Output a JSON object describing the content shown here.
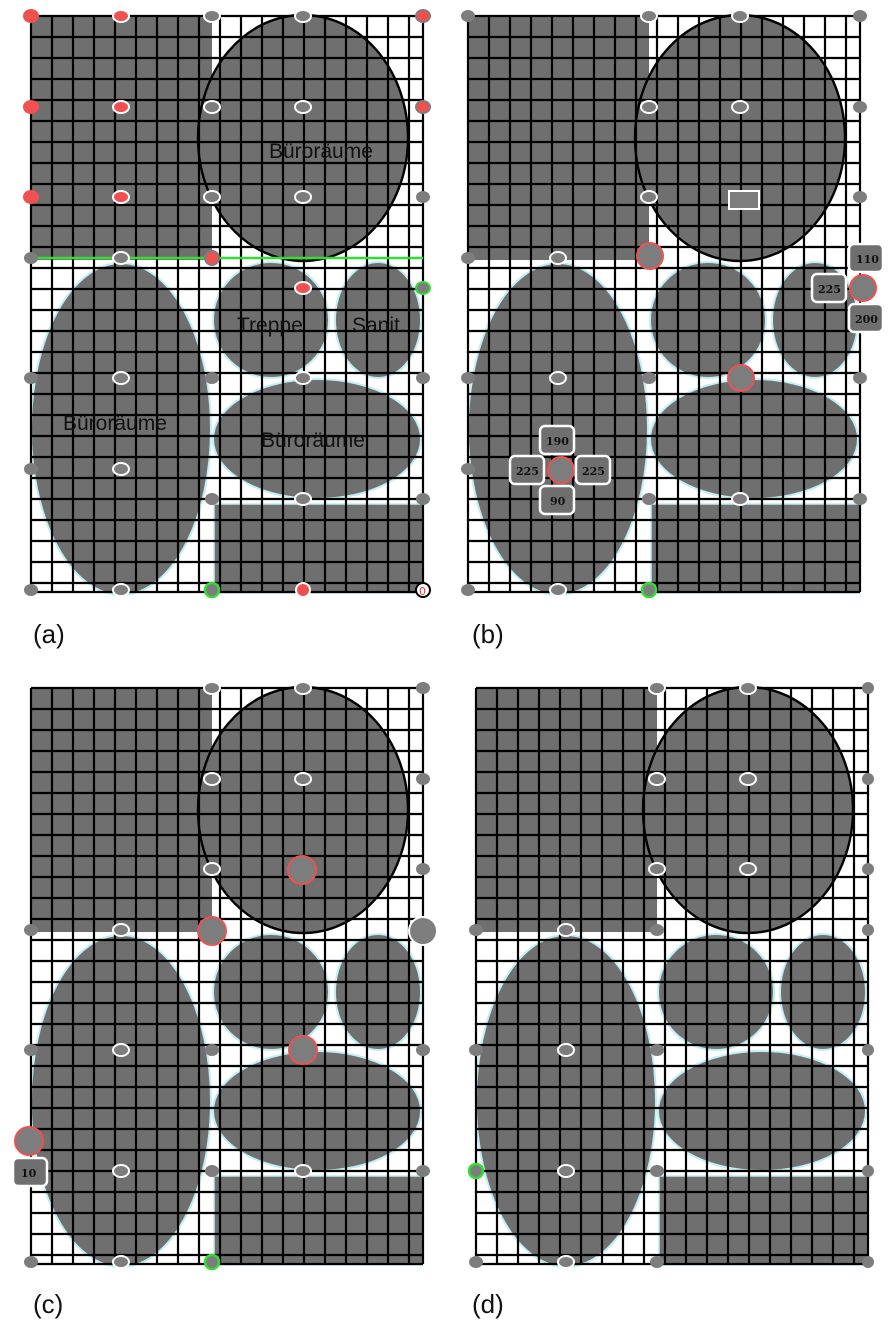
{
  "colors": {
    "room_fill": "#6f6f6f",
    "grid_line": "#000000",
    "node_gray": "#7d7d7d",
    "node_red": "#f05050",
    "node_green": "#33dd33",
    "highlight_green": "#33dd33",
    "badge_stroke": "#ffffff",
    "edge_glow": "#bfeef5"
  },
  "panels": [
    {
      "id": "a",
      "label": "(a)",
      "room_labels": [
        "Büroräume",
        "Treppe",
        "Sanit.",
        "Büroräume",
        "Büroräume"
      ],
      "has_green_wall_line": true,
      "marker_value": "0"
    },
    {
      "id": "b",
      "label": "(b)",
      "badges_cross": [
        "190",
        "225",
        "225",
        "90"
      ],
      "badges_right": [
        "110",
        "225",
        "200"
      ]
    },
    {
      "id": "c",
      "label": "(c)",
      "badges": [
        "10"
      ]
    },
    {
      "id": "d",
      "label": "(d)"
    }
  ]
}
